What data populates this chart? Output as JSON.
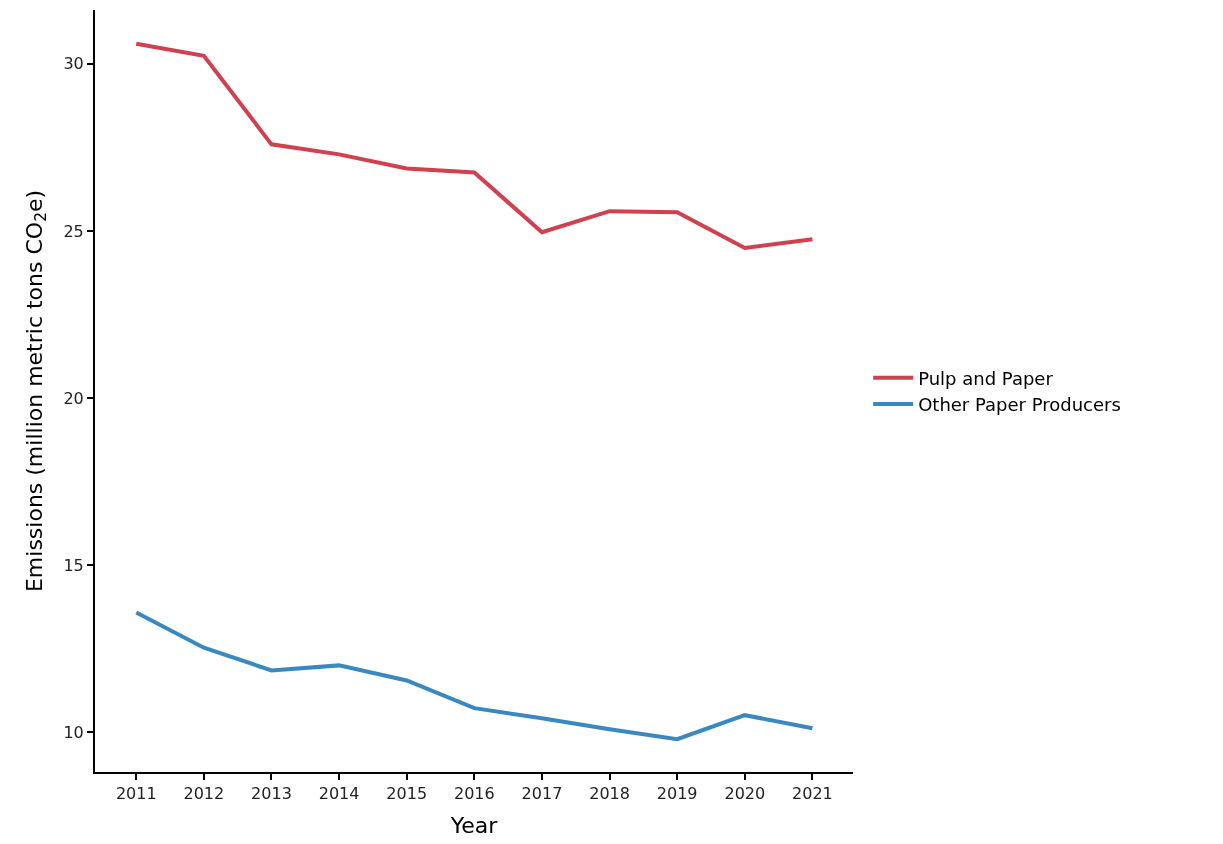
{
  "chart_data": {
    "type": "line",
    "xlabel": "Year",
    "ylabel": "Emissions (million metric tons CO$_{2}$e)",
    "x": [
      2011,
      2012,
      2013,
      2014,
      2015,
      2016,
      2017,
      2018,
      2019,
      2020,
      2021
    ],
    "series": [
      {
        "name": "Pulp and Paper",
        "color": "#d1404f",
        "values": [
          30.6,
          30.24,
          27.59,
          27.29,
          26.87,
          26.75,
          24.96,
          25.59,
          25.56,
          24.49,
          24.75
        ]
      },
      {
        "name": "Other Paper Producers",
        "color": "#3a88c0",
        "values": [
          13.58,
          12.53,
          11.85,
          12.0,
          11.55,
          10.72,
          10.42,
          10.09,
          9.79,
          10.51,
          10.12
        ]
      }
    ],
    "xlim": [
      2010.39,
      2021.6
    ],
    "ylim": [
      8.81,
      31.61
    ],
    "xticks": [
      2011,
      2012,
      2013,
      2014,
      2015,
      2016,
      2017,
      2018,
      2019,
      2020,
      2021
    ],
    "yticks": [
      10,
      15,
      20,
      25,
      30
    ],
    "legend": "right",
    "marker": "none",
    "line_style": "solid"
  }
}
